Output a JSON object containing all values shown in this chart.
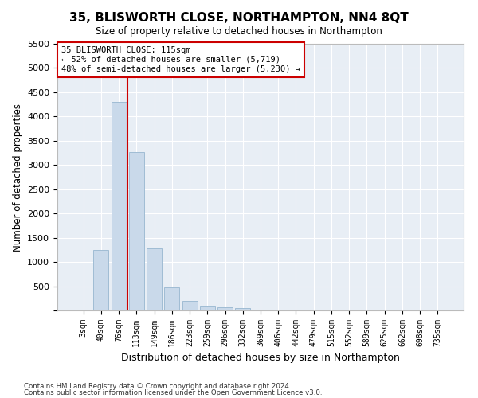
{
  "title": "35, BLISWORTH CLOSE, NORTHAMPTON, NN4 8QT",
  "subtitle": "Size of property relative to detached houses in Northampton",
  "xlabel": "Distribution of detached houses by size in Northampton",
  "ylabel": "Number of detached properties",
  "bar_color": "#c9d9ea",
  "bar_edge_color": "#a0bcd4",
  "plot_bg_color": "#e8eef5",
  "fig_bg_color": "#ffffff",
  "grid_color": "#ffffff",
  "vline_color": "#cc0000",
  "categories": [
    "3sqm",
    "40sqm",
    "76sqm",
    "113sqm",
    "149sqm",
    "186sqm",
    "223sqm",
    "259sqm",
    "296sqm",
    "332sqm",
    "369sqm",
    "406sqm",
    "442sqm",
    "479sqm",
    "515sqm",
    "552sqm",
    "589sqm",
    "625sqm",
    "662sqm",
    "698sqm",
    "735sqm"
  ],
  "values": [
    0,
    1250,
    4300,
    3270,
    1280,
    480,
    200,
    80,
    65,
    55,
    0,
    0,
    0,
    0,
    0,
    0,
    0,
    0,
    0,
    0,
    0
  ],
  "annotation_line1": "35 BLISWORTH CLOSE: 115sqm",
  "annotation_line2": "← 52% of detached houses are smaller (5,719)",
  "annotation_line3": "48% of semi-detached houses are larger (5,230) →",
  "annotation_box_color": "#ffffff",
  "annotation_box_edge": "#cc0000",
  "ylim": [
    0,
    5500
  ],
  "yticks": [
    0,
    500,
    1000,
    1500,
    2000,
    2500,
    3000,
    3500,
    4000,
    4500,
    5000,
    5500
  ],
  "footer_line1": "Contains HM Land Registry data © Crown copyright and database right 2024.",
  "footer_line2": "Contains public sector information licensed under the Open Government Licence v3.0.",
  "figsize": [
    6.0,
    5.0
  ],
  "dpi": 100
}
